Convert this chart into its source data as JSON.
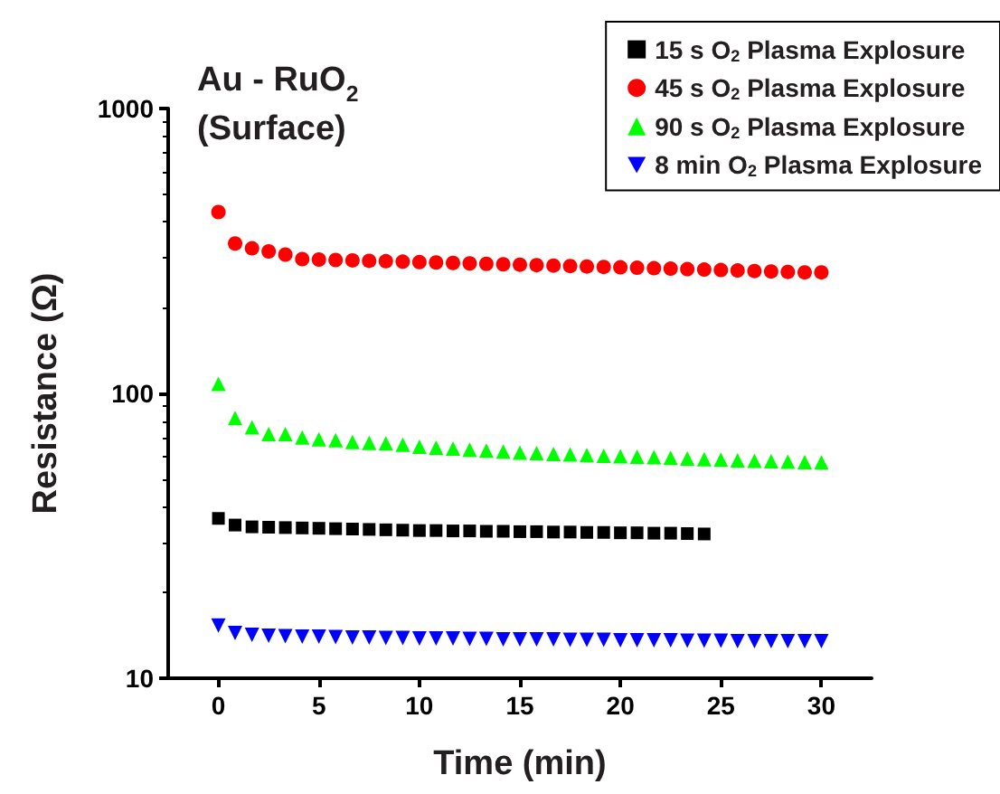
{
  "chart_data": {
    "type": "scatter",
    "title": "Au - RuO$_{2}$\n(Surface)",
    "xlabel": "Time (min)",
    "ylabel": "Resistance (Ω)",
    "x": [
      0,
      0.83,
      1.67,
      2.5,
      3.33,
      4.17,
      5,
      5.83,
      6.67,
      7.5,
      8.33,
      9.17,
      10,
      10.83,
      11.67,
      12.5,
      13.33,
      14.17,
      15,
      15.83,
      16.67,
      17.5,
      18.33,
      19.17,
      20,
      20.83,
      21.67,
      22.5,
      23.33,
      24.17,
      25,
      25.83,
      26.67,
      27.5,
      28.33,
      29.17,
      30
    ],
    "series": [
      {
        "name": "15 s O$_{2}$ Plasma Explosure",
        "color": "#000000",
        "marker": "square",
        "x": [
          0,
          0.83,
          1.67,
          2.5,
          3.33,
          4.17,
          5,
          5.83,
          6.67,
          7.5,
          8.33,
          9.17,
          10,
          10.83,
          11.67,
          12.5,
          13.33,
          14.17,
          15,
          15.83,
          16.67,
          17.5,
          18.33,
          19.17,
          20,
          20.83,
          21.67,
          22.5,
          23.33,
          24.17
        ],
        "values": [
          36.4,
          34.5,
          34,
          33.9,
          33.8,
          33.7,
          33.6,
          33.5,
          33.4,
          33.3,
          33.2,
          33.1,
          33,
          33,
          32.9,
          32.9,
          32.8,
          32.8,
          32.7,
          32.7,
          32.6,
          32.6,
          32.5,
          32.5,
          32.4,
          32.4,
          32.3,
          32.3,
          32.2,
          32.1
        ]
      },
      {
        "name": "45 s O$_{2}$ Plasma Explosure",
        "color": "#ff0000",
        "marker": "circle",
        "values": [
          433,
          336,
          323,
          315,
          307,
          296,
          295,
          294,
          293,
          292,
          291,
          290,
          289,
          288,
          287,
          286,
          285,
          284,
          283,
          282,
          281,
          280,
          279,
          278,
          277,
          276,
          275,
          274,
          273,
          272,
          271,
          270,
          269,
          268,
          267,
          266,
          266
        ]
      },
      {
        "name": "90 s O$_{2}$ Plasma Explosure",
        "color": "#00ff00",
        "marker": "triangle",
        "values": [
          108,
          82,
          76,
          72,
          72,
          70,
          69,
          68.5,
          67.5,
          67,
          66.8,
          66,
          65,
          64.5,
          64,
          63.5,
          63,
          62.5,
          62,
          61.7,
          61.3,
          61,
          60.7,
          60.4,
          60.2,
          60,
          59.7,
          59.4,
          59.1,
          58.8,
          58.5,
          58.2,
          58,
          57.8,
          57.6,
          57.4,
          57.3
        ]
      },
      {
        "name": "8 min O$_{2}$ Plasma Explosure",
        "color": "#0000ff",
        "marker": "triangle-down",
        "values": [
          15.3,
          14.4,
          14.2,
          14.1,
          14.05,
          14,
          14,
          13.95,
          13.9,
          13.9,
          13.85,
          13.85,
          13.8,
          13.8,
          13.8,
          13.75,
          13.75,
          13.7,
          13.7,
          13.7,
          13.7,
          13.65,
          13.65,
          13.65,
          13.6,
          13.6,
          13.6,
          13.6,
          13.55,
          13.55,
          13.55,
          13.5,
          13.5,
          13.5,
          13.5,
          13.5,
          13.5
        ]
      }
    ],
    "xlim": [
      -2.5,
      32.5
    ],
    "xticks": [
      0,
      5,
      10,
      15,
      20,
      25,
      30
    ],
    "ylim": [
      10,
      1000
    ],
    "yticks": [
      10,
      100,
      1000
    ],
    "log": "y",
    "grid": false,
    "legend": "top right"
  }
}
